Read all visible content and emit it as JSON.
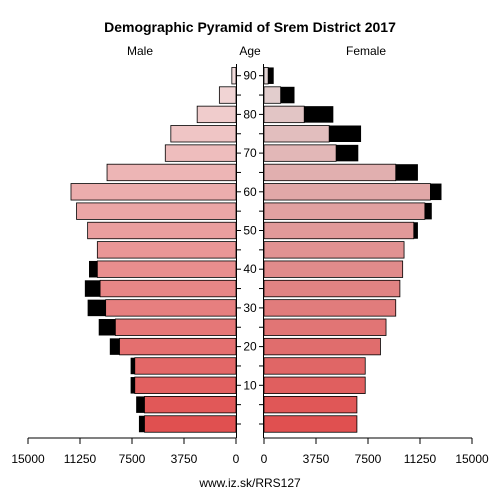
{
  "chart_data": {
    "type": "bar",
    "title": "Demographic Pyramid of Srem District 2017",
    "male_label": "Male",
    "female_label": "Female",
    "age_label": "Age",
    "source": "www.iz.sk/RRS127",
    "age_groups": [
      "0-4",
      "5-9",
      "10-14",
      "15-19",
      "20-24",
      "25-29",
      "30-34",
      "35-39",
      "40-44",
      "45-49",
      "50-54",
      "55-59",
      "60-64",
      "65-69",
      "70-74",
      "75-79",
      "80-84",
      "85-89",
      "90+"
    ],
    "age_ticks": [
      10,
      20,
      30,
      40,
      50,
      60,
      70,
      80,
      90
    ],
    "axis_ticks_male": [
      "15000",
      "11250",
      "7500",
      "3750",
      "0"
    ],
    "axis_ticks_female": [
      "0",
      "3750",
      "7500",
      "11250",
      "15000"
    ],
    "xlim": [
      0,
      15000
    ],
    "series": [
      {
        "name": "Male",
        "values": [
          6600,
          6600,
          7300,
          7300,
          8400,
          8700,
          9400,
          9800,
          10000,
          10000,
          10700,
          11500,
          11900,
          9300,
          5100,
          4700,
          2800,
          1200,
          300
        ]
      },
      {
        "name": "Male excess",
        "values": [
          400,
          600,
          300,
          300,
          700,
          1200,
          1300,
          1100,
          600,
          0,
          0,
          0,
          0,
          0,
          0,
          0,
          0,
          0,
          0
        ]
      },
      {
        "name": "Female",
        "values": [
          6700,
          6700,
          7300,
          7300,
          8400,
          8800,
          9500,
          9800,
          10000,
          10100,
          10800,
          11600,
          12000,
          9500,
          5200,
          4700,
          2900,
          1200,
          300
        ]
      },
      {
        "name": "Female excess",
        "values": [
          0,
          0,
          0,
          0,
          0,
          0,
          0,
          0,
          0,
          0,
          300,
          500,
          800,
          1600,
          1600,
          2300,
          2100,
          1000,
          400
        ]
      }
    ],
    "colors": {
      "male_young": "#e05050",
      "male_old": "#f2dcdc",
      "female_young": "#e05050",
      "female_old": "#e2d4d4",
      "excess": "#000000",
      "axis": "#000000"
    }
  }
}
